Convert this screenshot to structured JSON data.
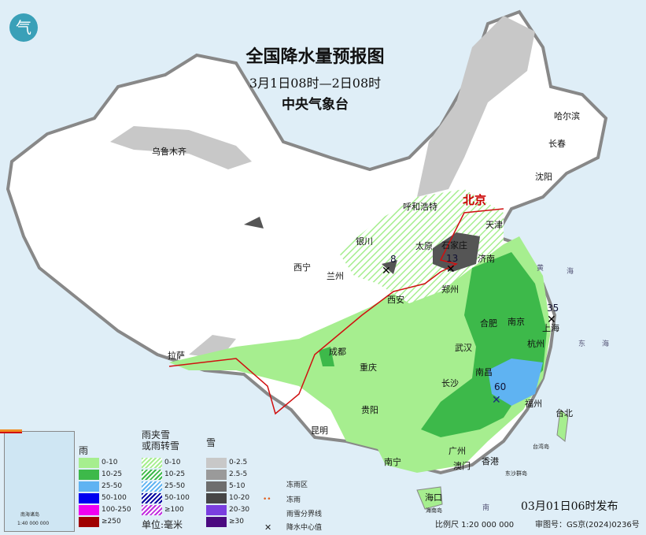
{
  "title": "全国降水量预报图",
  "period": "3月1日08时—2日08时",
  "agency": "中央气象台",
  "logo_text": "气",
  "cities": [
    {
      "name": "乌鲁木齐"
    },
    {
      "name": "哈尔滨"
    },
    {
      "name": "长春"
    },
    {
      "name": "沈阳"
    },
    {
      "name": "北京",
      "capital": true
    },
    {
      "name": "天津"
    },
    {
      "name": "呼和浩特"
    },
    {
      "name": "石家庄"
    },
    {
      "name": "太原"
    },
    {
      "name": "济南"
    },
    {
      "name": "银川"
    },
    {
      "name": "西宁"
    },
    {
      "name": "兰州"
    },
    {
      "name": "西安"
    },
    {
      "name": "郑州"
    },
    {
      "name": "合肥"
    },
    {
      "name": "南京"
    },
    {
      "name": "上海"
    },
    {
      "name": "杭州"
    },
    {
      "name": "武汉"
    },
    {
      "name": "成都"
    },
    {
      "name": "重庆"
    },
    {
      "name": "拉萨"
    },
    {
      "name": "长沙"
    },
    {
      "name": "南昌"
    },
    {
      "name": "福州"
    },
    {
      "name": "台北"
    },
    {
      "name": "贵阳"
    },
    {
      "name": "昆明"
    },
    {
      "name": "南宁"
    },
    {
      "name": "广州"
    },
    {
      "name": "澳门"
    },
    {
      "name": "香港"
    },
    {
      "name": "海口"
    }
  ],
  "precip_centers": [
    "8",
    "13",
    "35",
    "60"
  ],
  "sea_labels": [
    "黄",
    "海",
    "东",
    "海",
    "南",
    "台湾岛",
    "东沙群岛",
    "海南岛"
  ],
  "legend": {
    "rain": {
      "title": "雨",
      "items": [
        {
          "label": "0-10",
          "color": "#a6ee8f"
        },
        {
          "label": "10-25",
          "color": "#3db94a"
        },
        {
          "label": "25-50",
          "color": "#5fb3f2"
        },
        {
          "label": "50-100",
          "color": "#0000f0"
        },
        {
          "label": "100-250",
          "color": "#f000f0"
        },
        {
          "label": "≥250",
          "color": "#a00000"
        }
      ]
    },
    "sleet": {
      "title": "雨夹雪\n或雨转雪",
      "items": [
        {
          "label": "0-10",
          "color": "#a6ee8f"
        },
        {
          "label": "10-25",
          "color": "#3db94a"
        },
        {
          "label": "25-50",
          "color": "#5fb3f2"
        },
        {
          "label": "50-100",
          "color": "#0000a0"
        },
        {
          "label": "≥100",
          "color": "#c030e0"
        }
      ]
    },
    "snow": {
      "title": "雪",
      "items": [
        {
          "label": "0-2.5",
          "color": "#c8c8c8"
        },
        {
          "label": "2.5-5",
          "color": "#9a9a9a"
        },
        {
          "label": "5-10",
          "color": "#6e6e6e"
        },
        {
          "label": "10-20",
          "color": "#464646"
        },
        {
          "label": "20-30",
          "color": "#7a3ee0"
        },
        {
          "label": "≥30",
          "color": "#4a0a80"
        }
      ]
    },
    "unit": "单位:毫米",
    "freezing_area": "冻雨区",
    "freezing_rain": "冻雨",
    "freeze_line": "雨雪分界线",
    "center_value": "降水中心值"
  },
  "inset_label": "南海诸岛",
  "inset_scale": "1:40 000 000",
  "issue_time": "03月01日06时发布",
  "scale": "比例尺 1:20 000 000",
  "map_number": "审图号：GS京(2024)0236号"
}
